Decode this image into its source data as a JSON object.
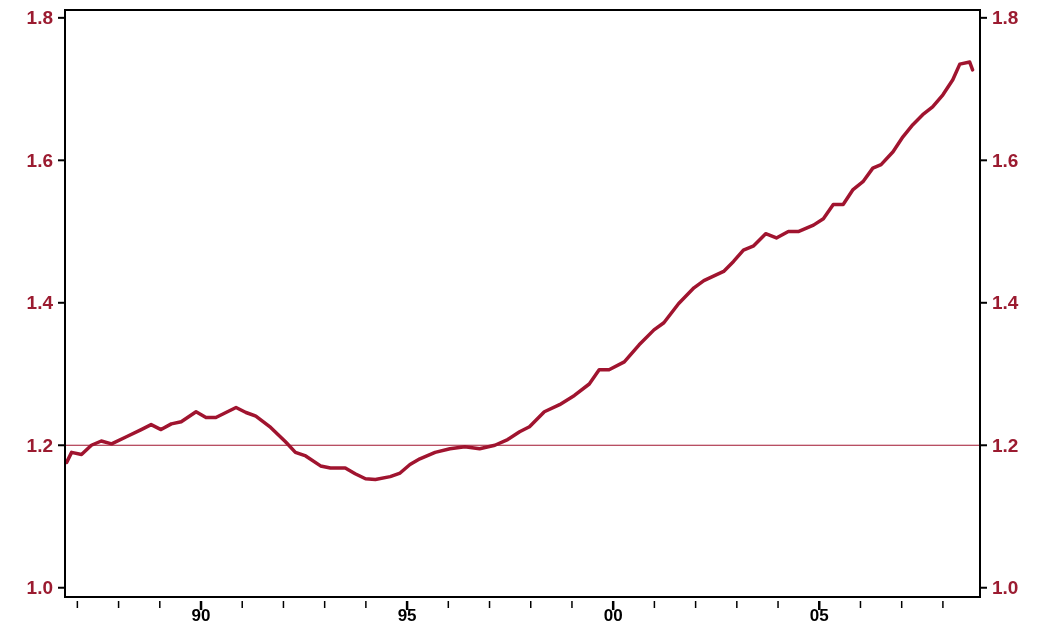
{
  "chart_data": {
    "type": "line",
    "x": [
      1986.74,
      1986.86,
      1987.1,
      1987.34,
      1987.58,
      1987.83,
      1988.19,
      1988.55,
      1988.79,
      1989.03,
      1989.28,
      1989.52,
      1989.88,
      1990.12,
      1990.36,
      1990.85,
      1991.09,
      1991.33,
      1991.69,
      1992.05,
      1992.29,
      1992.54,
      1992.9,
      1993.14,
      1993.5,
      1993.74,
      1993.99,
      1994.23,
      1994.59,
      1994.83,
      1995.07,
      1995.31,
      1995.68,
      1996.04,
      1996.4,
      1996.76,
      1997.13,
      1997.44,
      1997.73,
      1997.97,
      1998.33,
      1998.7,
      1999.06,
      1999.42,
      1999.66,
      1999.9,
      2000.27,
      2000.63,
      2000.99,
      2001.23,
      2001.59,
      2001.96,
      2002.2,
      2002.68,
      2002.92,
      2003.16,
      2003.41,
      2003.7,
      2003.96,
      2004.25,
      2004.49,
      2004.86,
      2005.1,
      2005.34,
      2005.58,
      2005.82,
      2006.06,
      2006.3,
      2006.5,
      2006.79,
      2007.03,
      2007.27,
      2007.51,
      2007.75,
      2008.0,
      2008.24,
      2008.41,
      2008.65,
      2008.72
    ],
    "series": [
      {
        "color": "#a0142f",
        "values": [
          1.176,
          1.19,
          1.187,
          1.2,
          1.206,
          1.202,
          1.212,
          1.222,
          1.229,
          1.222,
          1.23,
          1.233,
          1.247,
          1.239,
          1.239,
          1.253,
          1.246,
          1.241,
          1.225,
          1.205,
          1.19,
          1.185,
          1.171,
          1.168,
          1.168,
          1.16,
          1.153,
          1.152,
          1.156,
          1.161,
          1.173,
          1.181,
          1.19,
          1.195,
          1.198,
          1.195,
          1.2,
          1.208,
          1.219,
          1.226,
          1.247,
          1.257,
          1.27,
          1.286,
          1.306,
          1.306,
          1.317,
          1.341,
          1.362,
          1.372,
          1.399,
          1.421,
          1.431,
          1.444,
          1.458,
          1.474,
          1.48,
          1.497,
          1.491,
          1.5,
          1.5,
          1.509,
          1.518,
          1.538,
          1.538,
          1.559,
          1.57,
          1.589,
          1.594,
          1.612,
          1.633,
          1.65,
          1.664,
          1.675,
          1.692,
          1.713,
          1.735,
          1.738,
          1.727
        ]
      }
    ],
    "xlim": [
      1986.7,
      2008.9
    ],
    "xticks": [
      {
        "value": 1987,
        "label": null
      },
      {
        "value": 1988,
        "label": null
      },
      {
        "value": 1989,
        "label": null
      },
      {
        "value": 1990,
        "label": "90"
      },
      {
        "value": 1991,
        "label": null
      },
      {
        "value": 1992,
        "label": null
      },
      {
        "value": 1993,
        "label": null
      },
      {
        "value": 1994,
        "label": null
      },
      {
        "value": 1995,
        "label": "95"
      },
      {
        "value": 1996,
        "label": null
      },
      {
        "value": 1997,
        "label": null
      },
      {
        "value": 1998,
        "label": null
      },
      {
        "value": 1999,
        "label": null
      },
      {
        "value": 2000,
        "label": "00"
      },
      {
        "value": 2001,
        "label": null
      },
      {
        "value": 2002,
        "label": null
      },
      {
        "value": 2003,
        "label": null
      },
      {
        "value": 2004,
        "label": null
      },
      {
        "value": 2005,
        "label": "05"
      },
      {
        "value": 2006,
        "label": null
      },
      {
        "value": 2007,
        "label": null
      },
      {
        "value": 2008,
        "label": null
      }
    ],
    "ylim": [
      0.987,
      1.811
    ],
    "yticks": [
      {
        "value": 1.0,
        "label": "1.0"
      },
      {
        "value": 1.2,
        "label": "1.2"
      },
      {
        "value": 1.4,
        "label": "1.4"
      },
      {
        "value": 1.6,
        "label": "1.6"
      },
      {
        "value": 1.8,
        "label": "1.8"
      }
    ],
    "y2lim": [
      0.987,
      1.811
    ],
    "y2ticks": [
      {
        "value": 1.0,
        "label": "1.0"
      },
      {
        "value": 1.2,
        "label": "1.2"
      },
      {
        "value": 1.4,
        "label": "1.4"
      },
      {
        "value": 1.6,
        "label": "1.6"
      },
      {
        "value": 1.8,
        "label": "1.8"
      }
    ],
    "ref_lines": [
      {
        "axis": "y",
        "value": 1.2,
        "color": "#a0142f"
      }
    ],
    "grid": false,
    "marker": "none",
    "line_style": "solid"
  }
}
